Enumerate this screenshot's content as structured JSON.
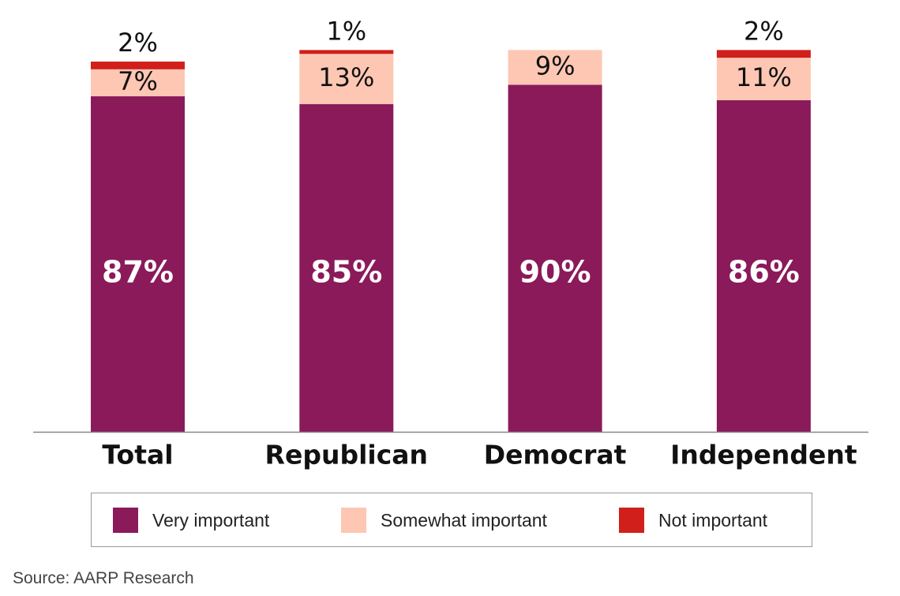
{
  "chart_data": {
    "type": "bar",
    "stacked": true,
    "title": "",
    "xlabel": "",
    "ylabel": "",
    "ylim": [
      0,
      100
    ],
    "grid": false,
    "legend_position": "bottom",
    "categories": [
      "Total",
      "Republican",
      "Democrat",
      "Independent"
    ],
    "series": [
      {
        "name": "Very important",
        "color": "#8B1A5B",
        "values": [
          87,
          85,
          90,
          86
        ],
        "labels": [
          "87%",
          "85%",
          "90%",
          "86%"
        ]
      },
      {
        "name": "Somewhat important",
        "color": "#FDC7B3",
        "values": [
          7,
          13,
          9,
          11
        ],
        "labels": [
          "7%",
          "13%",
          "9%",
          "11%"
        ]
      },
      {
        "name": "Not important",
        "color": "#D11F1B",
        "values": [
          2,
          1,
          0,
          2
        ],
        "labels": [
          "2%",
          "1%",
          "",
          "2%"
        ]
      }
    ]
  },
  "source": "Source: AARP Research"
}
